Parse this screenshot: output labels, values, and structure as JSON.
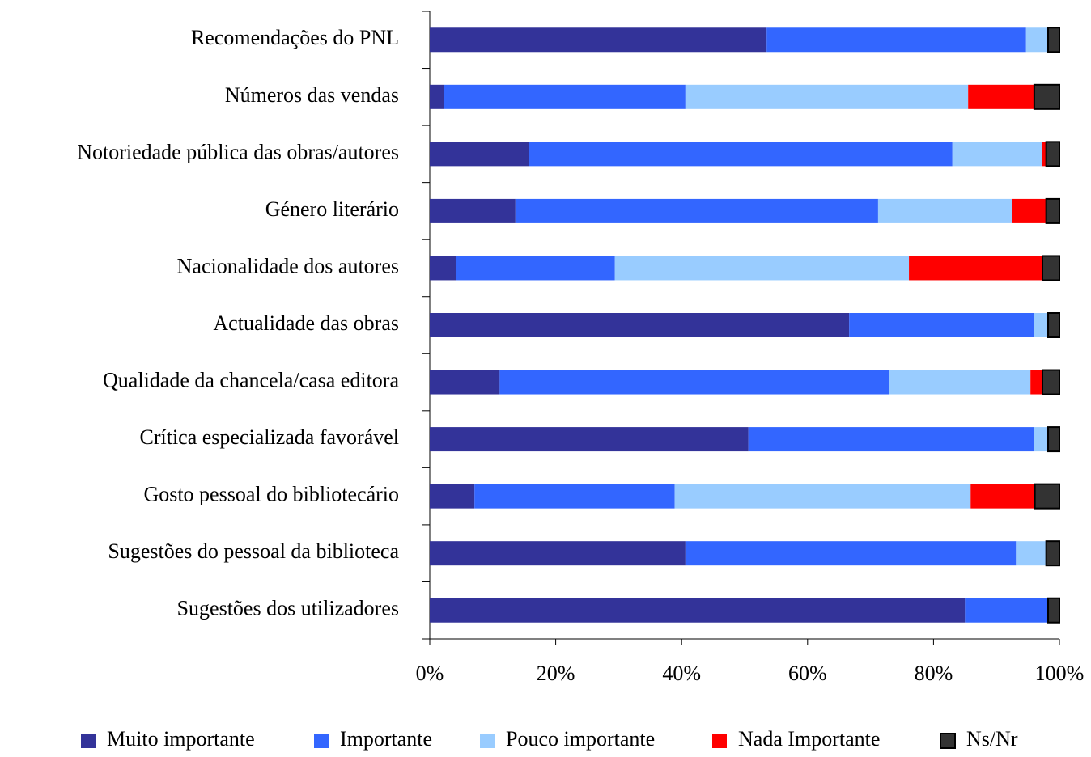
{
  "chart_data": {
    "type": "stacked-bar-horizontal",
    "categories": [
      "Recomendações do PNL",
      "Números das vendas",
      "Notoriedade pública das obras/autores",
      "Género literário",
      "Nacionalidade dos autores",
      "Actualidade das obras",
      "Qualidade da chancela/casa editora",
      "Crítica especializada favorável",
      "Gosto pessoal do bibliotecário",
      "Sugestões do pessoal da biblioteca",
      "Sugestões dos utilizadores"
    ],
    "series": [
      {
        "name": "Muito importante",
        "color": "#333399",
        "values": [
          53.5,
          2.2,
          15.8,
          13.6,
          4.2,
          66.6,
          11.1,
          50.6,
          7.1,
          40.6,
          85.0
        ]
      },
      {
        "name": "Importante",
        "color": "#3366ff",
        "values": [
          41.2,
          38.4,
          67.2,
          57.6,
          25.2,
          29.4,
          61.8,
          45.4,
          31.8,
          52.5,
          13.2
        ]
      },
      {
        "name": "Pouco importante",
        "color": "#99ccff",
        "values": [
          3.5,
          44.9,
          14.2,
          21.3,
          46.7,
          2.2,
          22.5,
          2.2,
          47.0,
          4.8,
          0
        ]
      },
      {
        "name": "Nada Importante",
        "color": "#ff0000",
        "values": [
          0,
          10.5,
          0.7,
          5.4,
          21.2,
          0,
          1.9,
          0,
          10.2,
          0,
          0
        ]
      },
      {
        "name": "Ns/Nr",
        "color": "#333333",
        "values": [
          1.8,
          4.0,
          2.1,
          2.1,
          2.7,
          1.8,
          2.7,
          1.8,
          3.9,
          2.1,
          1.8
        ]
      }
    ],
    "xlim": [
      0,
      100
    ],
    "xticks": [
      {
        "value": 0,
        "label": "0%"
      },
      {
        "value": 20,
        "label": "20%"
      },
      {
        "value": 40,
        "label": "40%"
      },
      {
        "value": 60,
        "label": "60%"
      },
      {
        "value": 80,
        "label": "80%"
      },
      {
        "value": 100,
        "label": "100%"
      }
    ],
    "legend": "bottom"
  }
}
